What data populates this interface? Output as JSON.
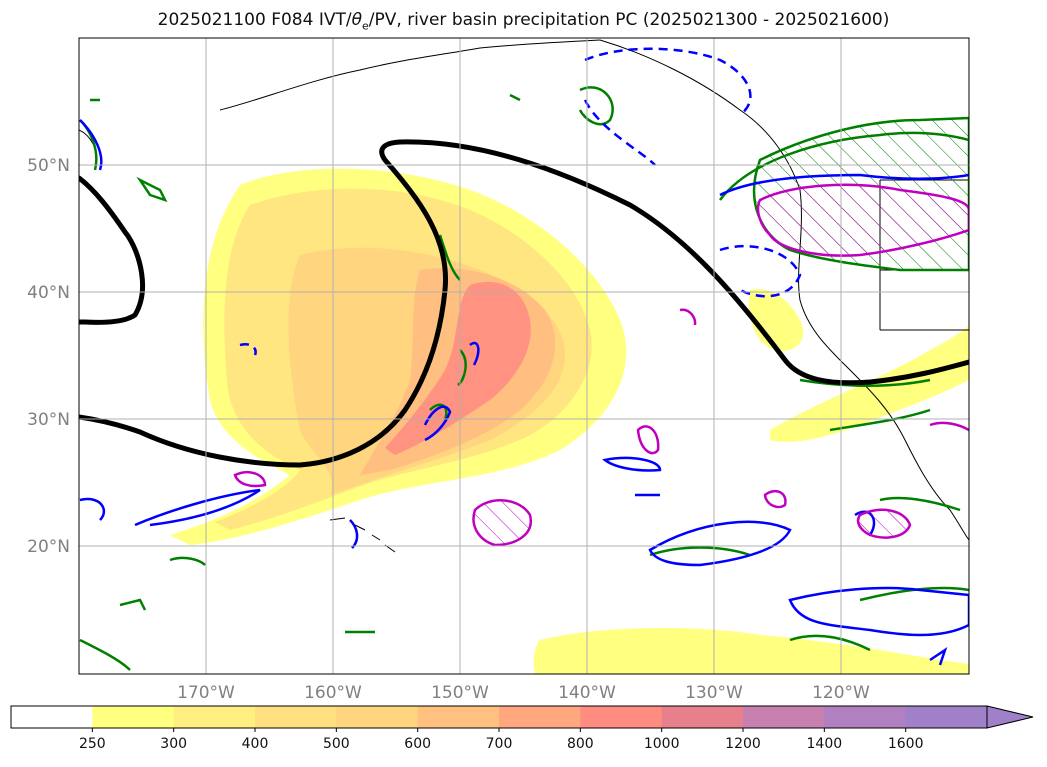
{
  "title": {
    "run": "2025021100 F084 IVT/",
    "theta": "θ",
    "theta_sub": "e",
    "rest": "/PV, river basin precipitation PC (2025021300 - 2025021600)"
  },
  "map": {
    "lat_labels": [
      "50°N",
      "40°N",
      "30°N",
      "20°N"
    ],
    "lon_labels": [
      "170°W",
      "160°W",
      "150°W",
      "140°W",
      "130°W",
      "120°W"
    ],
    "contour_colors": {
      "pv_line": "#000000",
      "theta_e": "#0000ff",
      "precip_pc": "#008000",
      "precip_pc_high": "#c000c0"
    }
  },
  "colorbar": {
    "levels": [
      "250",
      "300",
      "400",
      "500",
      "600",
      "700",
      "800",
      "1000",
      "1200",
      "1400",
      "1600"
    ],
    "colors": [
      "#ffffff",
      "#ffff80",
      "#ffee80",
      "#ffe080",
      "#ffd580",
      "#ffc080",
      "#ffa880",
      "#ff8c80",
      "#e8808c",
      "#c880b0",
      "#b080c0",
      "#a080c8"
    ]
  }
}
